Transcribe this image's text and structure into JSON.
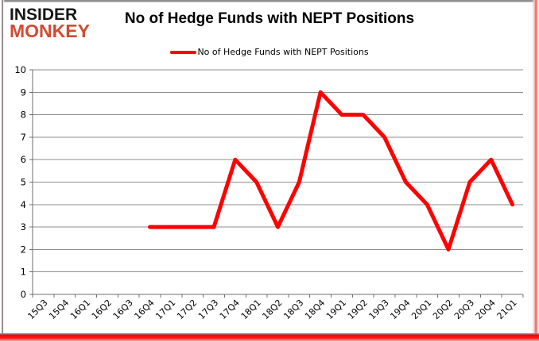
{
  "logo": {
    "line1": "INSIDER",
    "line2": "MONKEY"
  },
  "header": {
    "title": "No of Hedge Funds with NEPT Positions"
  },
  "legend": {
    "label": "No of Hedge Funds with NEPT Positions"
  },
  "colors": {
    "line": "#ff0000",
    "grid": "#8e8e8e",
    "axis": "#6f6f6f",
    "tick_text": "#000000",
    "logo_black": "#161616",
    "logo_red": "#d14b32"
  },
  "chart_data": {
    "type": "line",
    "title": "No of Hedge Funds with NEPT Positions",
    "xlabel": "",
    "ylabel": "",
    "ylim": [
      0,
      10
    ],
    "yticks": [
      0,
      1,
      2,
      3,
      4,
      5,
      6,
      7,
      8,
      9,
      10
    ],
    "grid": "horizontal",
    "legend_position": "top",
    "line_width": 5,
    "categories": [
      "15Q3",
      "15Q4",
      "16Q1",
      "16Q2",
      "16Q3",
      "16Q4",
      "17Q1",
      "17Q2",
      "17Q3",
      "17Q4",
      "18Q1",
      "18Q2",
      "18Q3",
      "18Q4",
      "19Q1",
      "19Q2",
      "19Q3",
      "19Q4",
      "20Q1",
      "20Q2",
      "20Q3",
      "20Q4",
      "21Q1"
    ],
    "series": [
      {
        "name": "No of Hedge Funds with NEPT Positions",
        "color": "#ff0000",
        "values": [
          null,
          null,
          null,
          null,
          null,
          3,
          3,
          3,
          3,
          6,
          5,
          3,
          5,
          9,
          8,
          8,
          7,
          5,
          4,
          2,
          5,
          6,
          4
        ]
      }
    ]
  }
}
